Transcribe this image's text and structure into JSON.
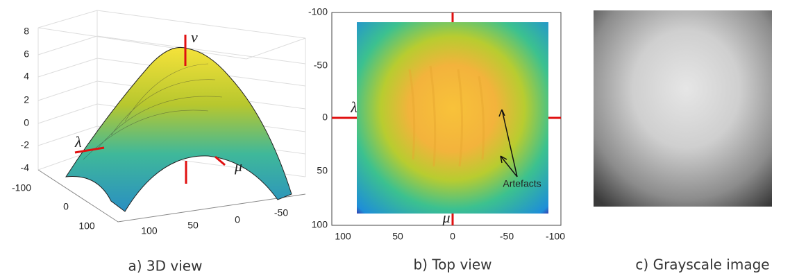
{
  "panels": [
    {
      "caption": "a) 3D view",
      "z_ticks": [
        "8",
        "6",
        "4",
        "2",
        "0",
        "-2",
        "-4"
      ],
      "x_ticks": [
        "-100",
        "0",
        "100"
      ],
      "y_ticks": [
        "100",
        "50",
        "0",
        "-50"
      ],
      "axis_labels": [
        "ν",
        "λ",
        "μ"
      ]
    },
    {
      "caption": "b) Top view",
      "y_ticks": [
        "-100",
        "-50",
        "0",
        "50",
        "100"
      ],
      "x_ticks": [
        "100",
        "50",
        "0",
        "-50",
        "-100"
      ],
      "axis_labels": [
        "λ",
        "μ"
      ],
      "annotation": "Artefacts"
    },
    {
      "caption": "c) Grayscale image"
    }
  ]
}
